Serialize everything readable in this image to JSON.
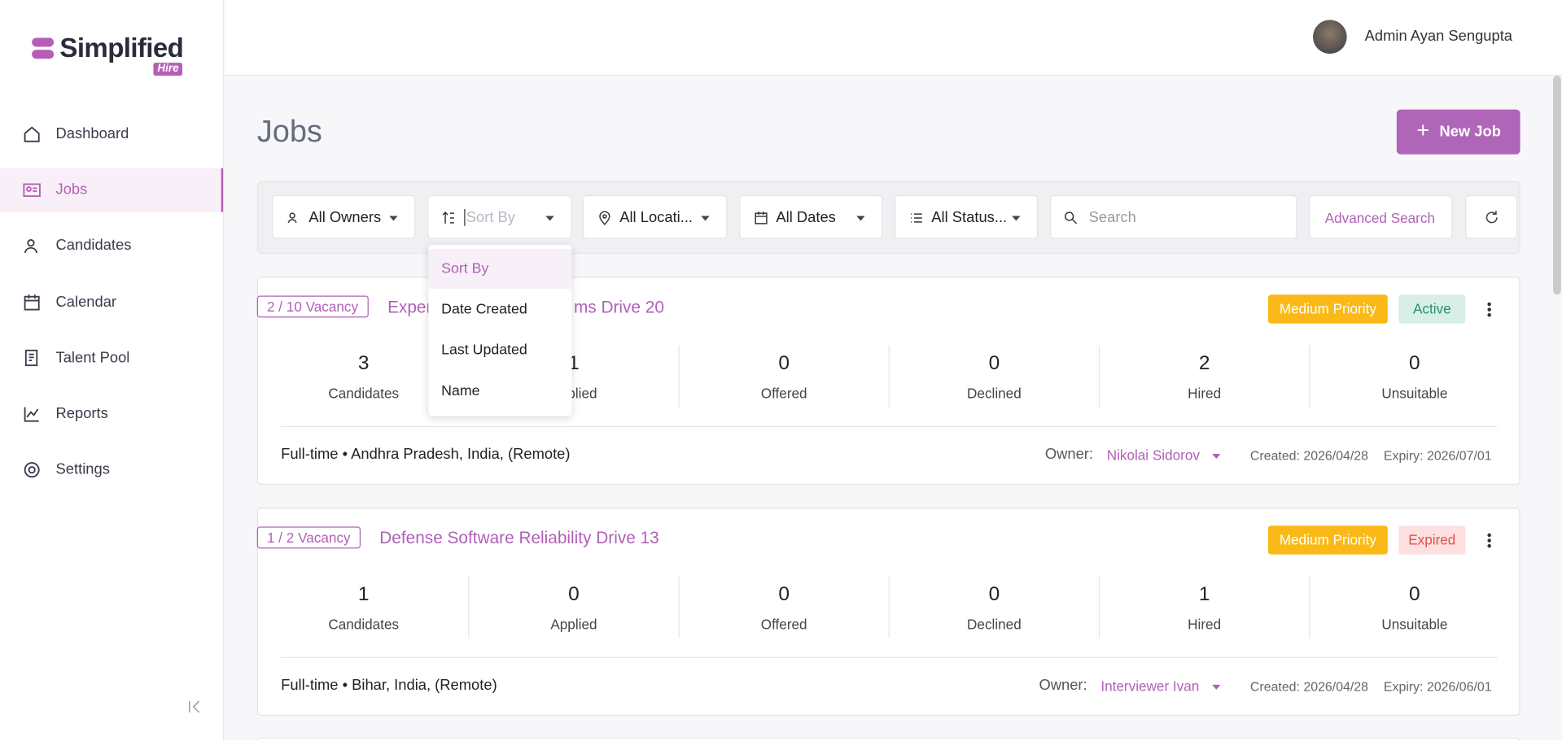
{
  "header": {
    "user": "Admin Ayan Sengupta"
  },
  "brand": {
    "name": "Simplified",
    "tag": "Hire"
  },
  "sidebar": {
    "items": [
      "Dashboard",
      "Jobs",
      "Candidates",
      "Calendar",
      "Talent Pool",
      "Reports",
      "Settings"
    ],
    "active": 1
  },
  "page": {
    "title": "Jobs",
    "new_job": "New Job"
  },
  "filters": {
    "owners": "All Owners",
    "sort": "Sort By",
    "locations": "All Locati...",
    "dates": "All Dates",
    "status": "All Status...",
    "search": "Search",
    "advanced": "Advanced Search"
  },
  "sort_menu": {
    "options": [
      "Sort By",
      "Date Created",
      "Last Updated",
      "Name"
    ]
  },
  "jobs": [
    {
      "vacancy": "2 / 10 Vacancy",
      "title_start": "Exper",
      "title_end": "ms Drive 20",
      "priority": "Medium Priority",
      "status": "Active",
      "stats": [
        {
          "value": 3,
          "label": "Candidates"
        },
        {
          "value": 1,
          "label": "Applied"
        },
        {
          "value": 0,
          "label": "Offered"
        },
        {
          "value": 0,
          "label": "Declined"
        },
        {
          "value": 2,
          "label": "Hired"
        },
        {
          "value": 0,
          "label": "Unsuitable"
        }
      ],
      "summary": "Full-time • Andhra Pradesh, India, (Remote)",
      "owner_label": "Owner:",
      "owner": "Nikolai Sidorov",
      "created": "Created: 2026/04/28",
      "expiry": "Expiry: 2026/07/01"
    },
    {
      "vacancy": "1 / 2 Vacancy",
      "title": "Defense Software Reliability Drive 13",
      "priority": "Medium Priority",
      "status": "Expired",
      "stats": [
        {
          "value": 1,
          "label": "Candidates"
        },
        {
          "value": 0,
          "label": "Applied"
        },
        {
          "value": 0,
          "label": "Offered"
        },
        {
          "value": 0,
          "label": "Declined"
        },
        {
          "value": 1,
          "label": "Hired"
        },
        {
          "value": 0,
          "label": "Unsuitable"
        }
      ],
      "summary": "Full-time • Bihar, India, (Remote)",
      "owner_label": "Owner:",
      "owner": "Interviewer Ivan",
      "created": "Created: 2026/04/28",
      "expiry": "Expiry: 2026/06/01"
    }
  ]
}
